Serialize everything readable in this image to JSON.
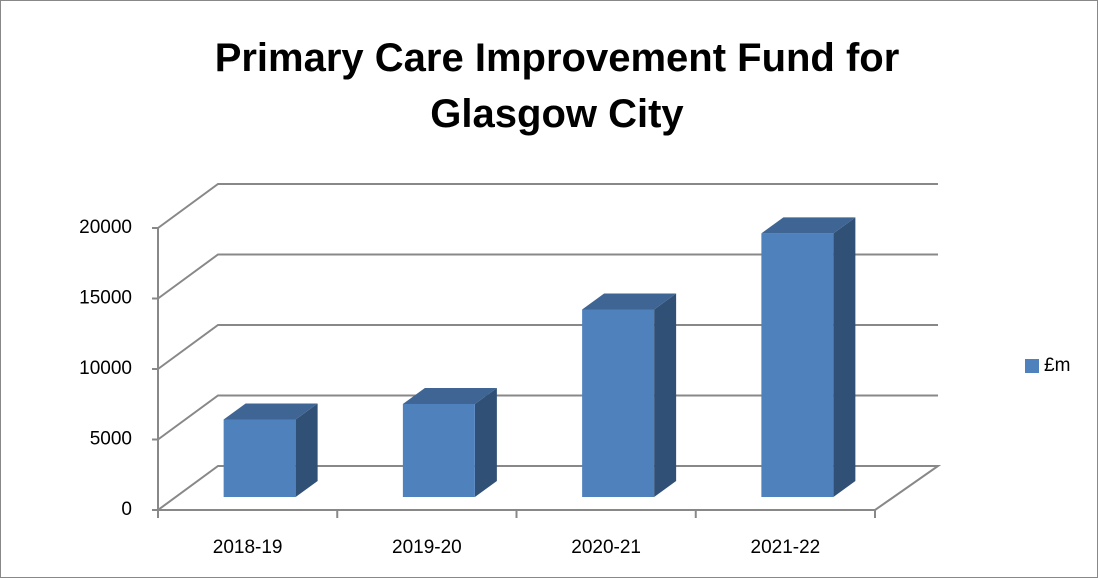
{
  "chart_data": {
    "type": "bar3d",
    "title": "Primary Care Improvement Fund for Glasgow City",
    "categories": [
      "2018-19",
      "2019-20",
      "2020-21",
      "2021-22"
    ],
    "series": [
      {
        "name": "£m",
        "color": "#4f81bd",
        "values": [
          5500,
          6600,
          13300,
          18700
        ]
      }
    ],
    "ylim": [
      0,
      20000
    ],
    "yticks": [
      0,
      5000,
      10000,
      15000,
      20000
    ],
    "grid": true,
    "legend": "right"
  }
}
